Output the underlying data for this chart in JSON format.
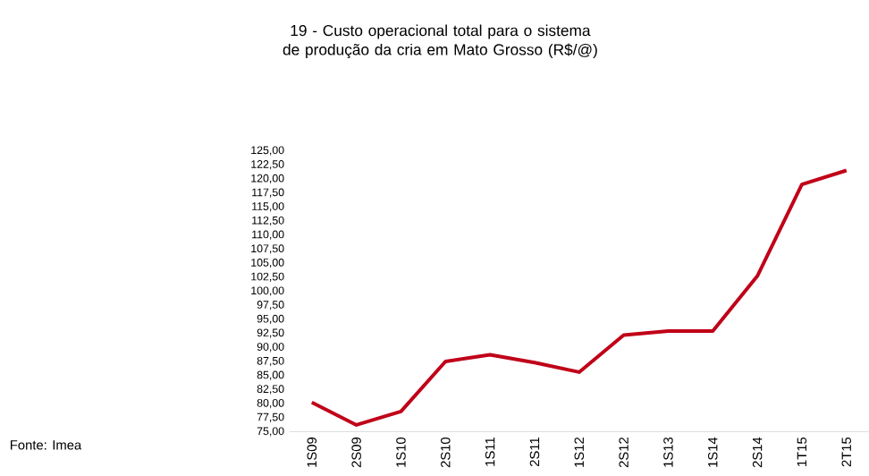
{
  "chart_data": {
    "type": "line",
    "title": "19 - Custo operacional total para o sistema de produção da cria em Mato Grosso (R$/@)",
    "categories": [
      "1S09",
      "2S09",
      "1S10",
      "2S10",
      "1S11",
      "2S11",
      "1S12",
      "2S12",
      "1S13",
      "1S14",
      "2S14",
      "1T15",
      "2T15"
    ],
    "values": [
      80.2,
      76.2,
      78.6,
      87.5,
      88.7,
      87.3,
      85.6,
      92.2,
      92.9,
      92.9,
      102.7,
      119.0,
      121.5
    ],
    "color": "#c00018",
    "ylim": [
      75,
      125
    ],
    "yticks": [
      {
        "value": 75,
        "label": "75,00"
      },
      {
        "value": 77.5,
        "label": "77,50"
      },
      {
        "value": 80,
        "label": "80,00"
      },
      {
        "value": 82.5,
        "label": "82,50"
      },
      {
        "value": 85,
        "label": "85,00"
      },
      {
        "value": 87.5,
        "label": "87,50"
      },
      {
        "value": 90,
        "label": "90,00"
      },
      {
        "value": 92.5,
        "label": "92,50"
      },
      {
        "value": 95,
        "label": "95,00"
      },
      {
        "value": 97.5,
        "label": "97,50"
      },
      {
        "value": 100,
        "label": "100,00"
      },
      {
        "value": 102.5,
        "label": "102,50"
      },
      {
        "value": 105,
        "label": "105,00"
      },
      {
        "value": 107.5,
        "label": "107,50"
      },
      {
        "value": 110,
        "label": "110,00"
      },
      {
        "value": 112.5,
        "label": "112,50"
      },
      {
        "value": 115,
        "label": "115,00"
      },
      {
        "value": 117.5,
        "label": "117,50"
      },
      {
        "value": 120,
        "label": "120,00"
      },
      {
        "value": 122.5,
        "label": "122,50"
      },
      {
        "value": 125,
        "label": "125,00"
      }
    ],
    "annotations": [
      "Fonte: Imea"
    ]
  }
}
